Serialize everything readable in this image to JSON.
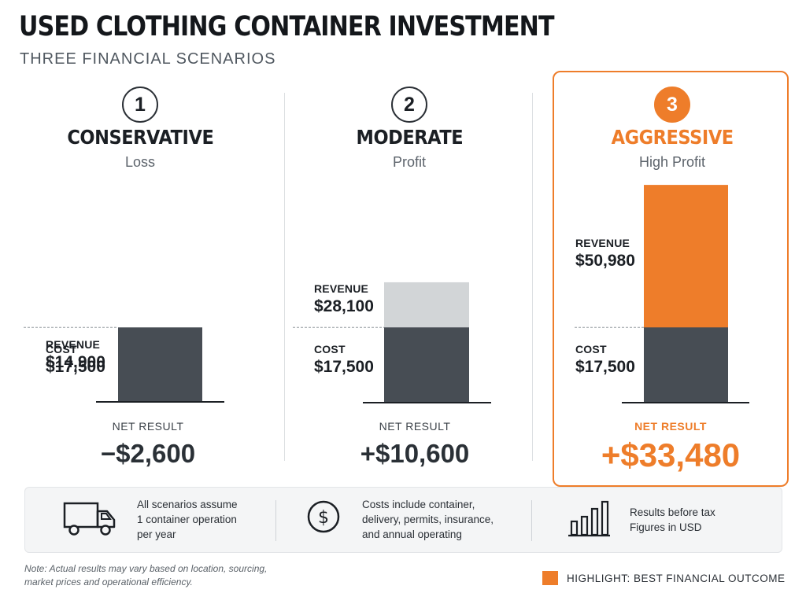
{
  "header": {
    "title": "USED CLOTHING CONTAINER INVESTMENT",
    "subtitle": "THREE FINANCIAL SCENARIOS"
  },
  "colors": {
    "accent": "#ee7d2a",
    "cost": "#474d54",
    "revenue_neutral": "#d2d5d7",
    "text": "#1b1f24"
  },
  "chart_data": {
    "type": "bar",
    "stacking": "overlay",
    "categories": [
      "CONSERVATIVE",
      "MODERATE",
      "AGGRESSIVE"
    ],
    "series": [
      {
        "name": "REVENUE",
        "values": [
          14900,
          28100,
          50980
        ]
      },
      {
        "name": "COST",
        "values": [
          17500,
          17500,
          17500
        ]
      }
    ],
    "net_results": [
      -2600,
      10600,
      33480
    ],
    "highlight_index": 2,
    "units": "USD"
  },
  "scenarios": [
    {
      "number": "1",
      "name": "CONSERVATIVE",
      "kind": "Loss",
      "revenue_label": "REVENUE",
      "revenue_value": "$14,900",
      "cost_label": "COST",
      "cost_value": "$17,500",
      "net_label": "NET RESULT",
      "net_value": "−$2,600"
    },
    {
      "number": "2",
      "name": "MODERATE",
      "kind": "Profit",
      "revenue_label": "REVENUE",
      "revenue_value": "$28,100",
      "cost_label": "COST",
      "cost_value": "$17,500",
      "net_label": "NET RESULT",
      "net_value": "+$10,600"
    },
    {
      "number": "3",
      "name": "AGGRESSIVE",
      "kind": "High Profit",
      "revenue_label": "REVENUE",
      "revenue_value": "$50,980",
      "cost_label": "COST",
      "cost_value": "$17,500",
      "net_label": "NET RESULT",
      "net_value": "+$33,480"
    }
  ],
  "info": {
    "assumption": {
      "icon": "truck-icon",
      "lines": [
        "All scenarios assume",
        "1 container operation",
        "per year"
      ]
    },
    "costs": {
      "icon": "dollar-circle-icon",
      "lines": [
        "Costs include container,",
        "delivery, permits, insurance,",
        "and annual operating"
      ]
    },
    "results": {
      "icon": "bar-chart-icon",
      "lines": [
        "Results before tax",
        "Figures in USD"
      ]
    }
  },
  "footer": {
    "note_lines": [
      "Note: Actual results may vary based on location, sourcing,",
      "market prices and operational efficiency."
    ],
    "legend": "HIGHLIGHT: BEST FINANCIAL OUTCOME"
  }
}
